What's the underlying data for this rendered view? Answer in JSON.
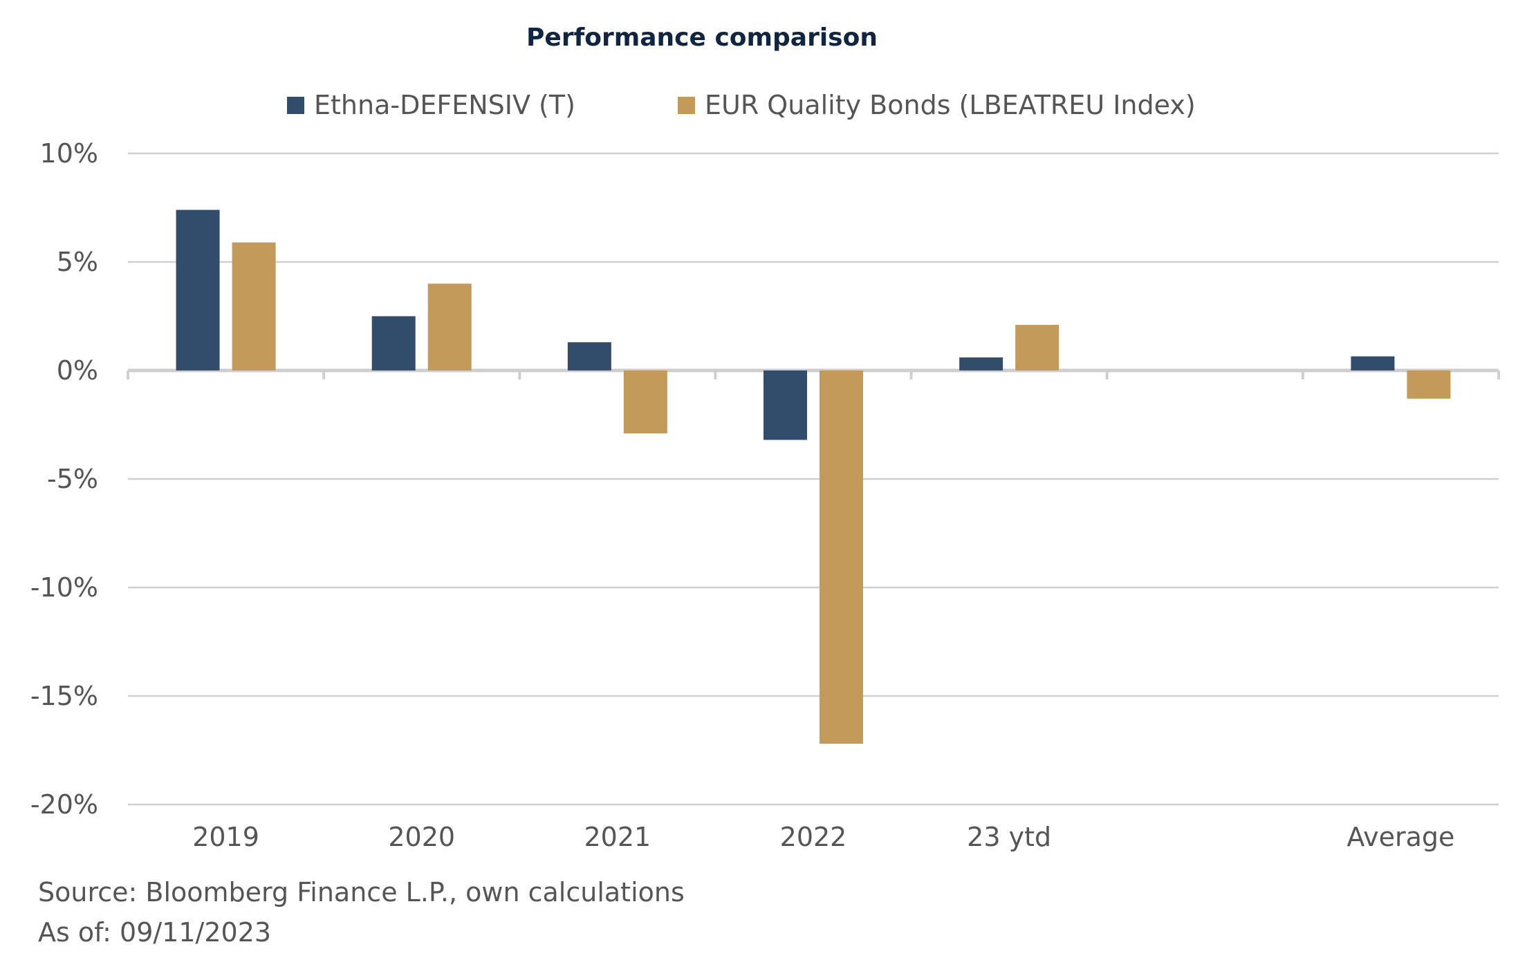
{
  "chart_data": {
    "type": "bar",
    "title": "Performance comparison",
    "categories": [
      "2019",
      "2020",
      "2021",
      "2022",
      "23 ytd",
      "",
      "Average"
    ],
    "series": [
      {
        "name": "Ethna-DEFENSIV (T)",
        "color": "#324d6b",
        "values": [
          7.4,
          2.5,
          1.3,
          -3.2,
          0.6,
          null,
          0.65
        ]
      },
      {
        "name": "EUR Quality Bonds (LBEATREU Index)",
        "color": "#c49a5b",
        "values": [
          5.9,
          4.0,
          -2.9,
          -17.2,
          2.1,
          null,
          -1.3
        ]
      }
    ],
    "ylim": [
      -20,
      10
    ],
    "yticks": [
      10,
      5,
      0,
      -5,
      -10,
      -15,
      -20
    ],
    "ytick_labels": [
      "10%",
      "5%",
      "0%",
      "-5%",
      "-10%",
      "-15%",
      "-20%"
    ],
    "xlabel": "",
    "ylabel": "",
    "grid": true,
    "legend": "top"
  },
  "footer": {
    "source": "Source: Bloomberg Finance L.P., own calculations",
    "as_of": "As of: 09/11/2023"
  }
}
